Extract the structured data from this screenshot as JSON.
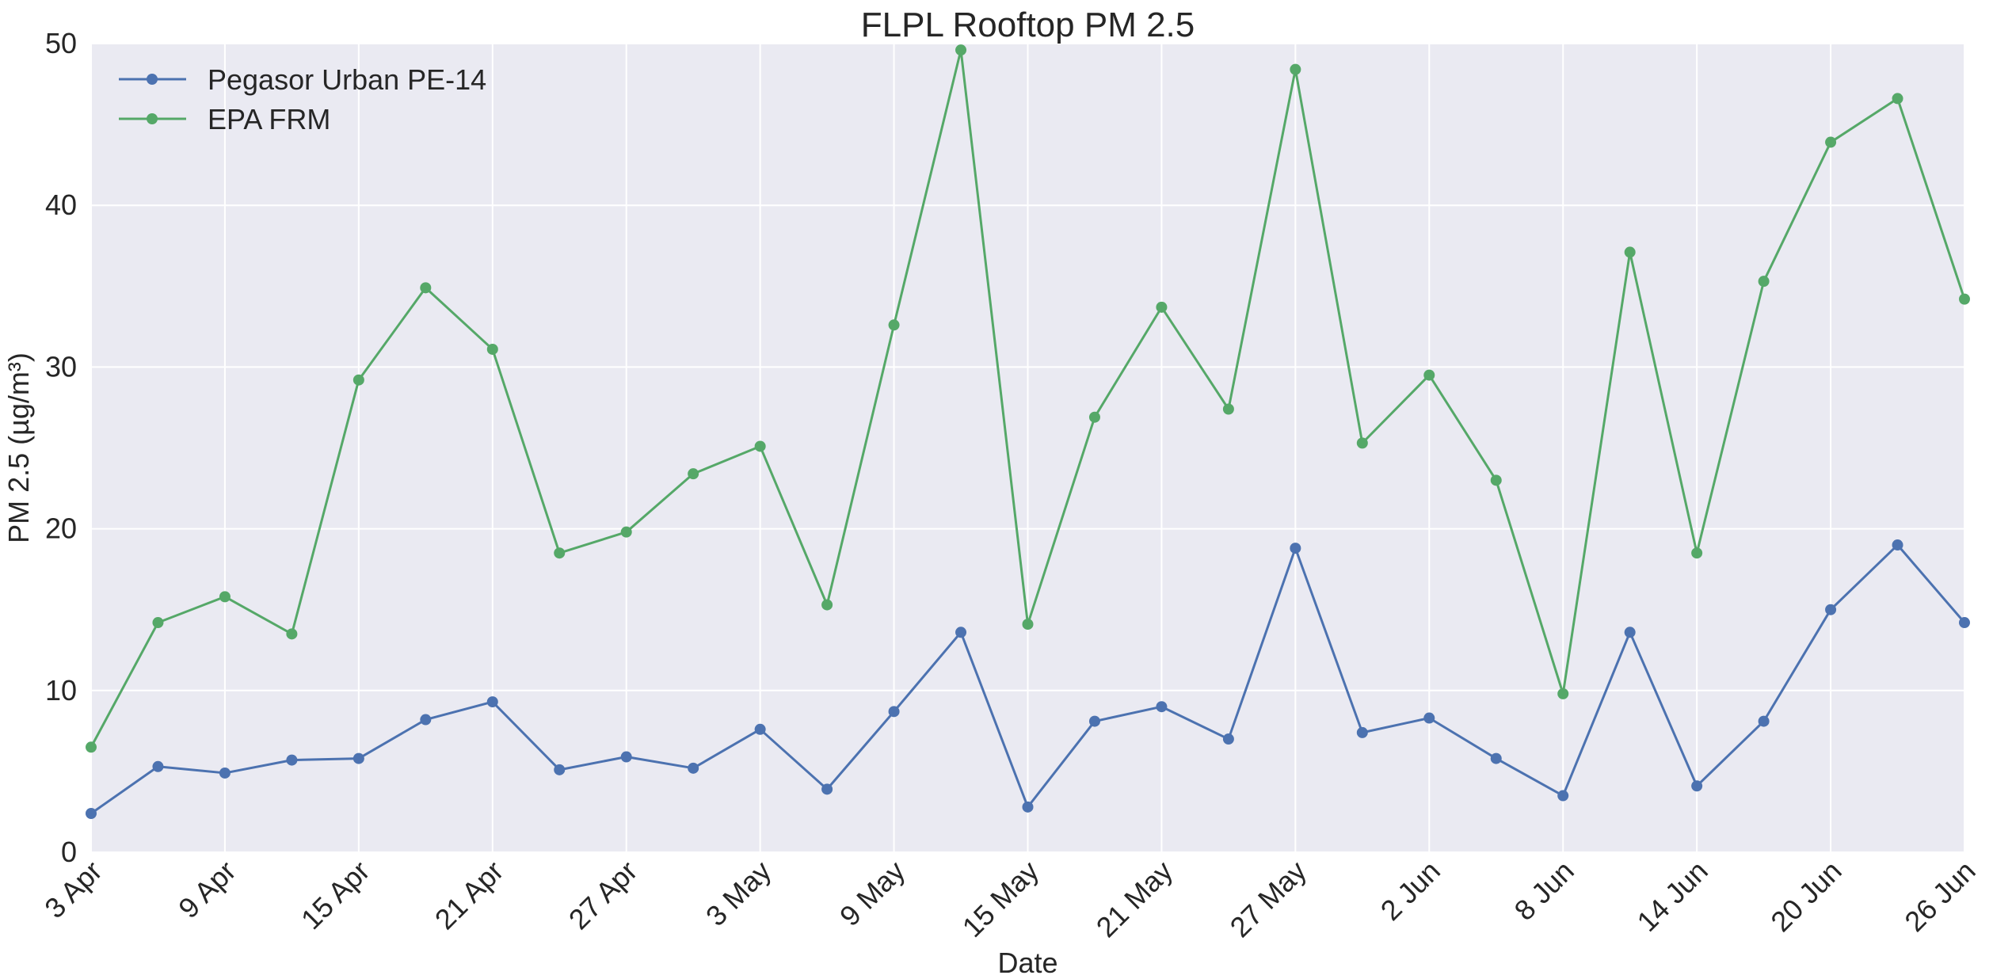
{
  "chart_data": {
    "type": "line",
    "title": "FLPL Rooftop PM 2.5",
    "xlabel": "Date",
    "ylabel": "PM 2.5 (µg/m³)",
    "ylim": [
      0,
      50
    ],
    "yticks": [
      "0",
      "10",
      "20",
      "30",
      "40",
      "50"
    ],
    "xlim": [
      "3 Apr",
      "26 Jun"
    ],
    "xticks": [
      "3 Apr",
      "9 Apr",
      "15 Apr",
      "21 Apr",
      "27 Apr",
      "3 May",
      "9 May",
      "15 May",
      "21 May",
      "27 May",
      "2 Jun",
      "8 Jun",
      "14 Jun",
      "20 Jun",
      "26 Jun"
    ],
    "grid": true,
    "legend_position": "top-left",
    "x": [
      "3 Apr",
      "6 Apr",
      "9 Apr",
      "12 Apr",
      "15 Apr",
      "18 Apr",
      "21 Apr",
      "24 Apr",
      "27 Apr",
      "30 Apr",
      "3 May",
      "6 May",
      "9 May",
      "12 May",
      "15 May",
      "18 May",
      "21 May",
      "24 May",
      "27 May",
      "30 May",
      "2 Jun",
      "5 Jun",
      "8 Jun",
      "11 Jun",
      "14 Jun",
      "17 Jun",
      "20 Jun",
      "23 Jun",
      "26 Jun"
    ],
    "series": [
      {
        "name": "Pegasor Urban PE-14",
        "color": "#4c72b0",
        "values": [
          2.4,
          5.3,
          4.9,
          5.7,
          5.8,
          8.2,
          9.3,
          5.1,
          5.9,
          5.2,
          7.6,
          3.9,
          8.7,
          13.6,
          2.8,
          8.1,
          9.0,
          7.0,
          18.8,
          7.4,
          8.3,
          5.8,
          3.5,
          13.6,
          4.1,
          8.1,
          15.0,
          19.0,
          14.2
        ]
      },
      {
        "name": "EPA FRM",
        "color": "#55a868",
        "values": [
          6.5,
          14.2,
          15.8,
          13.5,
          29.2,
          34.9,
          31.1,
          18.5,
          19.8,
          23.4,
          25.1,
          15.3,
          32.6,
          49.6,
          14.1,
          26.9,
          33.7,
          27.4,
          48.4,
          25.3,
          29.5,
          23.0,
          9.8,
          37.1,
          18.5,
          35.3,
          43.9,
          46.6,
          34.2
        ]
      }
    ]
  }
}
